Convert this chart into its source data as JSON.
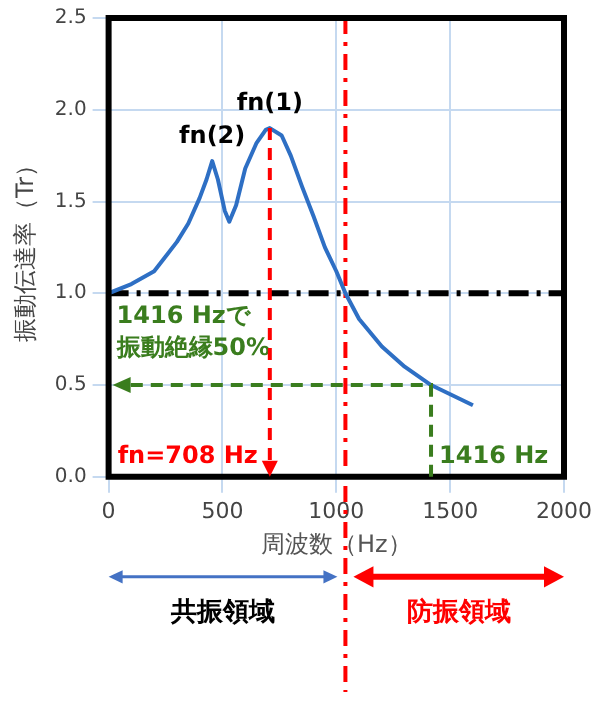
{
  "chart_data": {
    "type": "line",
    "xlabel": "周波数（Hz）",
    "ylabel": "振動伝達率（Tr）",
    "xlim": [
      0,
      2000
    ],
    "xticks": [
      0,
      500,
      1000,
      1500,
      2000
    ],
    "ylim": [
      0,
      2.5
    ],
    "yticks": [
      {
        "value": 0,
        "label": "0.0"
      },
      {
        "value": 0.5,
        "label": "0.5"
      },
      {
        "value": 1,
        "label": "1.0"
      },
      {
        "value": 1.5,
        "label": "1.5"
      },
      {
        "value": 2,
        "label": "2.0"
      },
      {
        "value": 2.5,
        "label": "2.5"
      }
    ],
    "grid": true,
    "legend": false,
    "series": [
      {
        "color": "#2e6fc4",
        "x": [
          0,
          100,
          200,
          300,
          350,
          400,
          430,
          455,
          480,
          510,
          530,
          560,
          600,
          650,
          690,
          708,
          760,
          800,
          850,
          900,
          950,
          1000,
          1040,
          1100,
          1200,
          1300,
          1416,
          1500,
          1600
        ],
        "values": [
          1.0,
          1.05,
          1.12,
          1.28,
          1.38,
          1.52,
          1.62,
          1.72,
          1.62,
          1.45,
          1.39,
          1.48,
          1.68,
          1.82,
          1.89,
          1.9,
          1.86,
          1.75,
          1.58,
          1.42,
          1.25,
          1.12,
          1.0,
          0.86,
          0.71,
          0.6,
          0.5,
          0.45,
          0.39
        ]
      }
    ],
    "ref_lines": [
      {
        "axis": "y",
        "value": 1,
        "color": "#000000",
        "line_style": "dashed"
      },
      {
        "axis": "x",
        "value": 1040,
        "color": "#ff0000",
        "line_style": "dashed"
      }
    ],
    "annotations": [
      {
        "text": "fn(1)",
        "x": 708,
        "y": 1.9
      },
      {
        "text": "fn(2)",
        "x": 455,
        "y": 1.72
      },
      "fn=708 Hz",
      {
        "text": "1416 Hz",
        "x": 1416,
        "y": 0.5
      },
      "1416 Hzで",
      "振動絶縁50%",
      "共振領域",
      "防振領域"
    ]
  }
}
